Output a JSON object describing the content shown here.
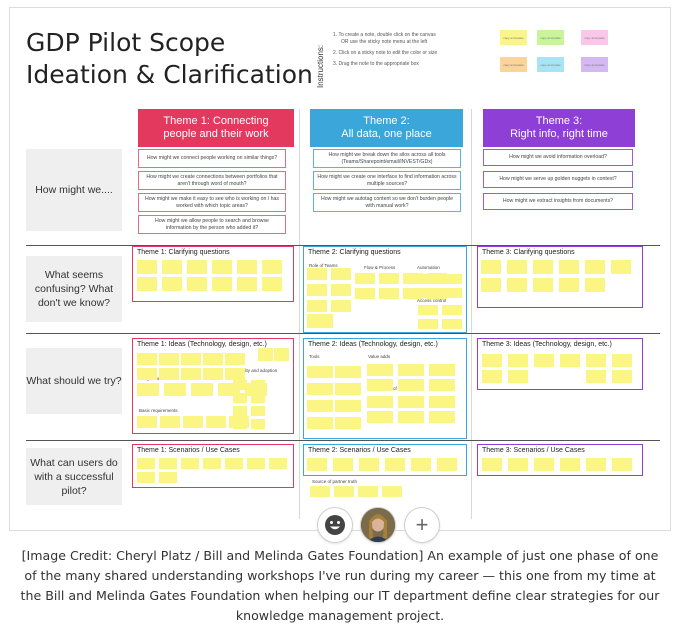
{
  "board": {
    "title_line1": "GDP Pilot Scope",
    "title_line2": "Ideation & Clarification",
    "instructions_label": "Instructions:",
    "instructions": [
      "1. To create a note, double click on the canvas",
      "OR use the sticky note menu at the left",
      "2. Click on a sticky note to edit the color or size",
      "3. Drag the note to the appropriate box"
    ],
    "swatches": [
      {
        "color": "#faf58a",
        "text": "copy and paste"
      },
      {
        "color": "#c9f59a",
        "text": "copy and paste"
      },
      {
        "color": "#f9c8e8",
        "text": "copy and paste"
      },
      {
        "color": "#fbd49a",
        "text": "copy and paste"
      },
      {
        "color": "#a9e4f5",
        "text": "copy and paste"
      },
      {
        "color": "#d4b8f2",
        "text": "copy and paste"
      }
    ],
    "themes": [
      {
        "line1": "Theme 1: Connecting",
        "line2": "people and their work",
        "color": "#e3395f",
        "border": "#e76a87"
      },
      {
        "line1": "Theme 2:",
        "line2": "All data, one place",
        "color": "#3aa6d9",
        "border": "#58b5e0"
      },
      {
        "line1": "Theme 3:",
        "line2": "Right info, right time",
        "color": "#8d3fd6",
        "border": "#9d5bdc"
      }
    ],
    "rows": [
      {
        "label": "How might we...."
      },
      {
        "label": "What seems confusing? What don't we know?"
      },
      {
        "label": "What should we try?"
      },
      {
        "label": "What can users do with a successful pilot?"
      }
    ],
    "hmw": [
      [
        "How might we connect people working on similar things?",
        "How might we create connections between portfolios that aren't through word of mouth?",
        "How might we make it easy to see who is working on / has worked with which topic areas?",
        "How might we allow people to search and browse information by the person who added it?"
      ],
      [
        "How might we break down the silos across all tools (Teams/Sharepoint/email/INVEST/GDx)",
        "How might we create one interface to find information across multiple sources?",
        "How might we autotag content so we don't burden people with manual work?"
      ],
      [
        "How might we avoid information overload?",
        "How might we serve up golden nuggets in context?",
        "How might we extract insights from documents?"
      ]
    ],
    "frames": {
      "clarify": [
        "Theme 1: Clarifying questions",
        "Theme 2: Clarifying questions",
        "Theme 3: Clarifying questions"
      ],
      "ideas": [
        "Theme 1: Ideas (Technology, design, etc.)",
        "Theme 2: Ideas (Technology, design, etc.)",
        "Theme 3: Ideas (Technology, design, etc.)"
      ],
      "scenarios": [
        "Theme 1: Scenarios / Use Cases",
        "Theme 2: Scenarios / Use Cases",
        "Theme 3: Scenarios / Use Cases"
      ]
    },
    "sublabels": {
      "t2_clarify": [
        "Role of Teams",
        "Flow & Process",
        "Automation",
        "Access control"
      ],
      "t1_ideas": [
        "Integrations",
        "Basic requirements",
        "Usability and adoption"
      ],
      "t2_ideas": [
        "Tools",
        "Value adds",
        "Shared way of working"
      ],
      "t2_scen": [
        "Source of partner truth"
      ]
    }
  },
  "toolbar": {
    "emoji_icon": "smiley-face-icon",
    "avatar": "user-avatar",
    "add_symbol": "+"
  },
  "caption": "[Image Credit: Cheryl Platz / Bill and Melinda Gates Foundation] An example of just one phase of one of the many shared understanding workshops I've run during my career — this one from my time at the Bill and Melinda Gates Foundation when helping our IT department define clear strategies for our knowledge management project."
}
